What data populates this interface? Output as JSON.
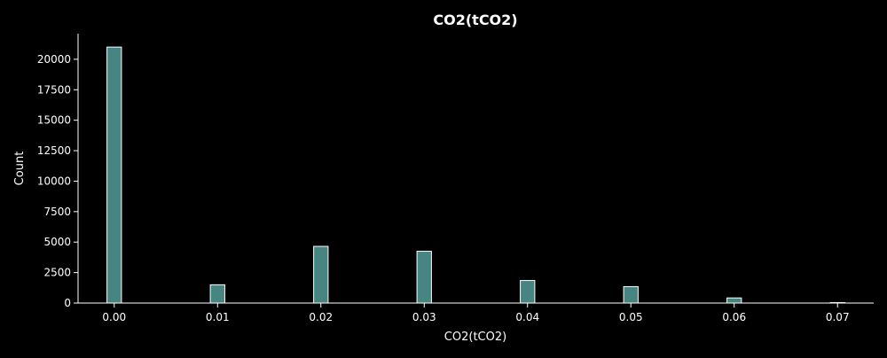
{
  "chart_data": {
    "type": "bar",
    "title": "CO2(tCO2)",
    "xlabel": "CO2(tCO2)",
    "ylabel": "Count",
    "xlim": [
      -0.0035,
      0.0735
    ],
    "ylim": [
      0,
      22100
    ],
    "xticks": [
      "0.00",
      "0.01",
      "0.02",
      "0.03",
      "0.04",
      "0.05",
      "0.06",
      "0.07"
    ],
    "yticks": [
      "0",
      "2500",
      "5000",
      "7500",
      "10000",
      "12500",
      "15000",
      "17500",
      "20000"
    ],
    "bin_width": 0.0014,
    "x": [
      0.0,
      0.01,
      0.02,
      0.03,
      0.04,
      0.05,
      0.06,
      0.07
    ],
    "values": [
      21000,
      1500,
      4650,
      4250,
      1850,
      1350,
      420,
      40
    ],
    "grid": false,
    "colors": {
      "bar_fill": "#468581",
      "bar_edge": "#ffffff",
      "axis": "#ffffff",
      "background": "#000000"
    }
  }
}
